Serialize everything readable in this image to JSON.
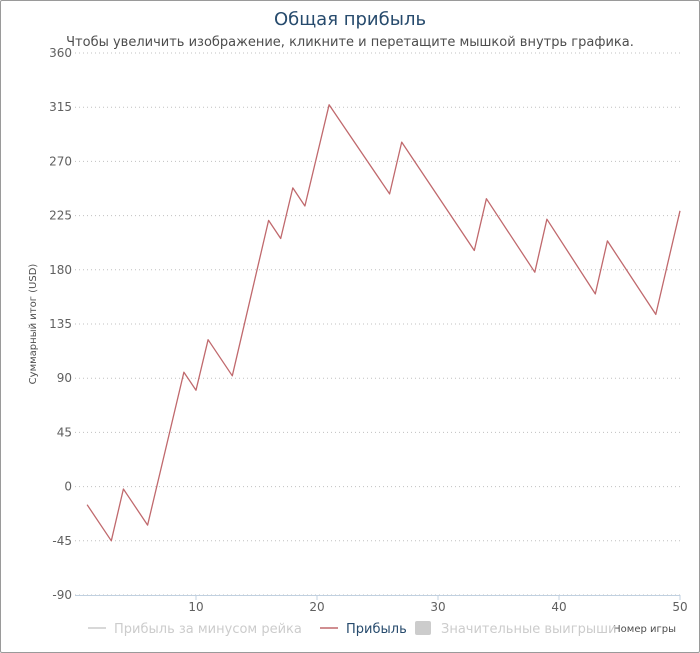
{
  "chart_data": {
    "type": "line",
    "title": "Общая прибыль",
    "subtitle": "Чтобы увеличить изображение, кликните и перетащите мышкой внутрь графика.",
    "xlabel": "Номер игры",
    "ylabel": "Суммарный итог (USD)",
    "xlim": [
      0,
      50
    ],
    "ylim": [
      -90,
      360
    ],
    "x_ticks": [
      10,
      20,
      30,
      40,
      50
    ],
    "y_ticks": [
      -90,
      -45,
      0,
      45,
      90,
      135,
      180,
      225,
      270,
      315,
      360
    ],
    "grid": true,
    "legend_placement": "bottom",
    "series": [
      {
        "name": "Прибыль",
        "color": "#c0696d",
        "x": [
          1,
          3,
          4,
          6,
          9,
          10,
          11,
          13,
          16,
          17,
          18,
          19,
          21,
          26,
          27,
          33,
          34,
          38,
          39,
          43,
          44,
          48,
          50
        ],
        "y": [
          -15,
          -45,
          -2,
          -32,
          95,
          80,
          122,
          92,
          221,
          206,
          248,
          233,
          317,
          243,
          286,
          196,
          239,
          178,
          222,
          160,
          204,
          143,
          229
        ]
      }
    ],
    "legend": [
      {
        "label": "Прибыль за минусом рейка",
        "color": "#cccccc",
        "symbol": "line",
        "active": false
      },
      {
        "label": "Прибыль",
        "color": "#c0696d",
        "symbol": "line",
        "active": true
      },
      {
        "label": "Значительные выигрыши",
        "color": "#cccccc",
        "symbol": "square",
        "active": false
      }
    ]
  },
  "colors": {
    "title": "#274b6d",
    "grid": "#c0c0c0",
    "axis": "#c0d0e0",
    "legend_active_text": "#274b6d",
    "legend_inactive_text": "#cccccc"
  }
}
